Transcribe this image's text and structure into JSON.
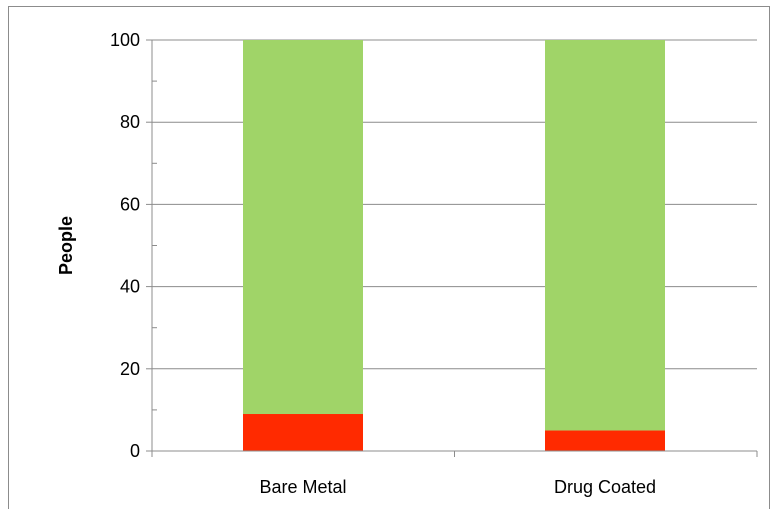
{
  "chart_data": {
    "type": "bar",
    "stacked": true,
    "title": "",
    "xlabel": "",
    "ylabel": "People",
    "ylim": [
      0,
      100
    ],
    "yticks": [
      0,
      20,
      40,
      60,
      80,
      100
    ],
    "grid": true,
    "categories": [
      "Bare Metal",
      "Drug Coated"
    ],
    "series": [
      {
        "color": "#ff2a00",
        "values": [
          9,
          5
        ]
      },
      {
        "color": "#a0d468",
        "values": [
          91,
          95
        ]
      }
    ]
  }
}
